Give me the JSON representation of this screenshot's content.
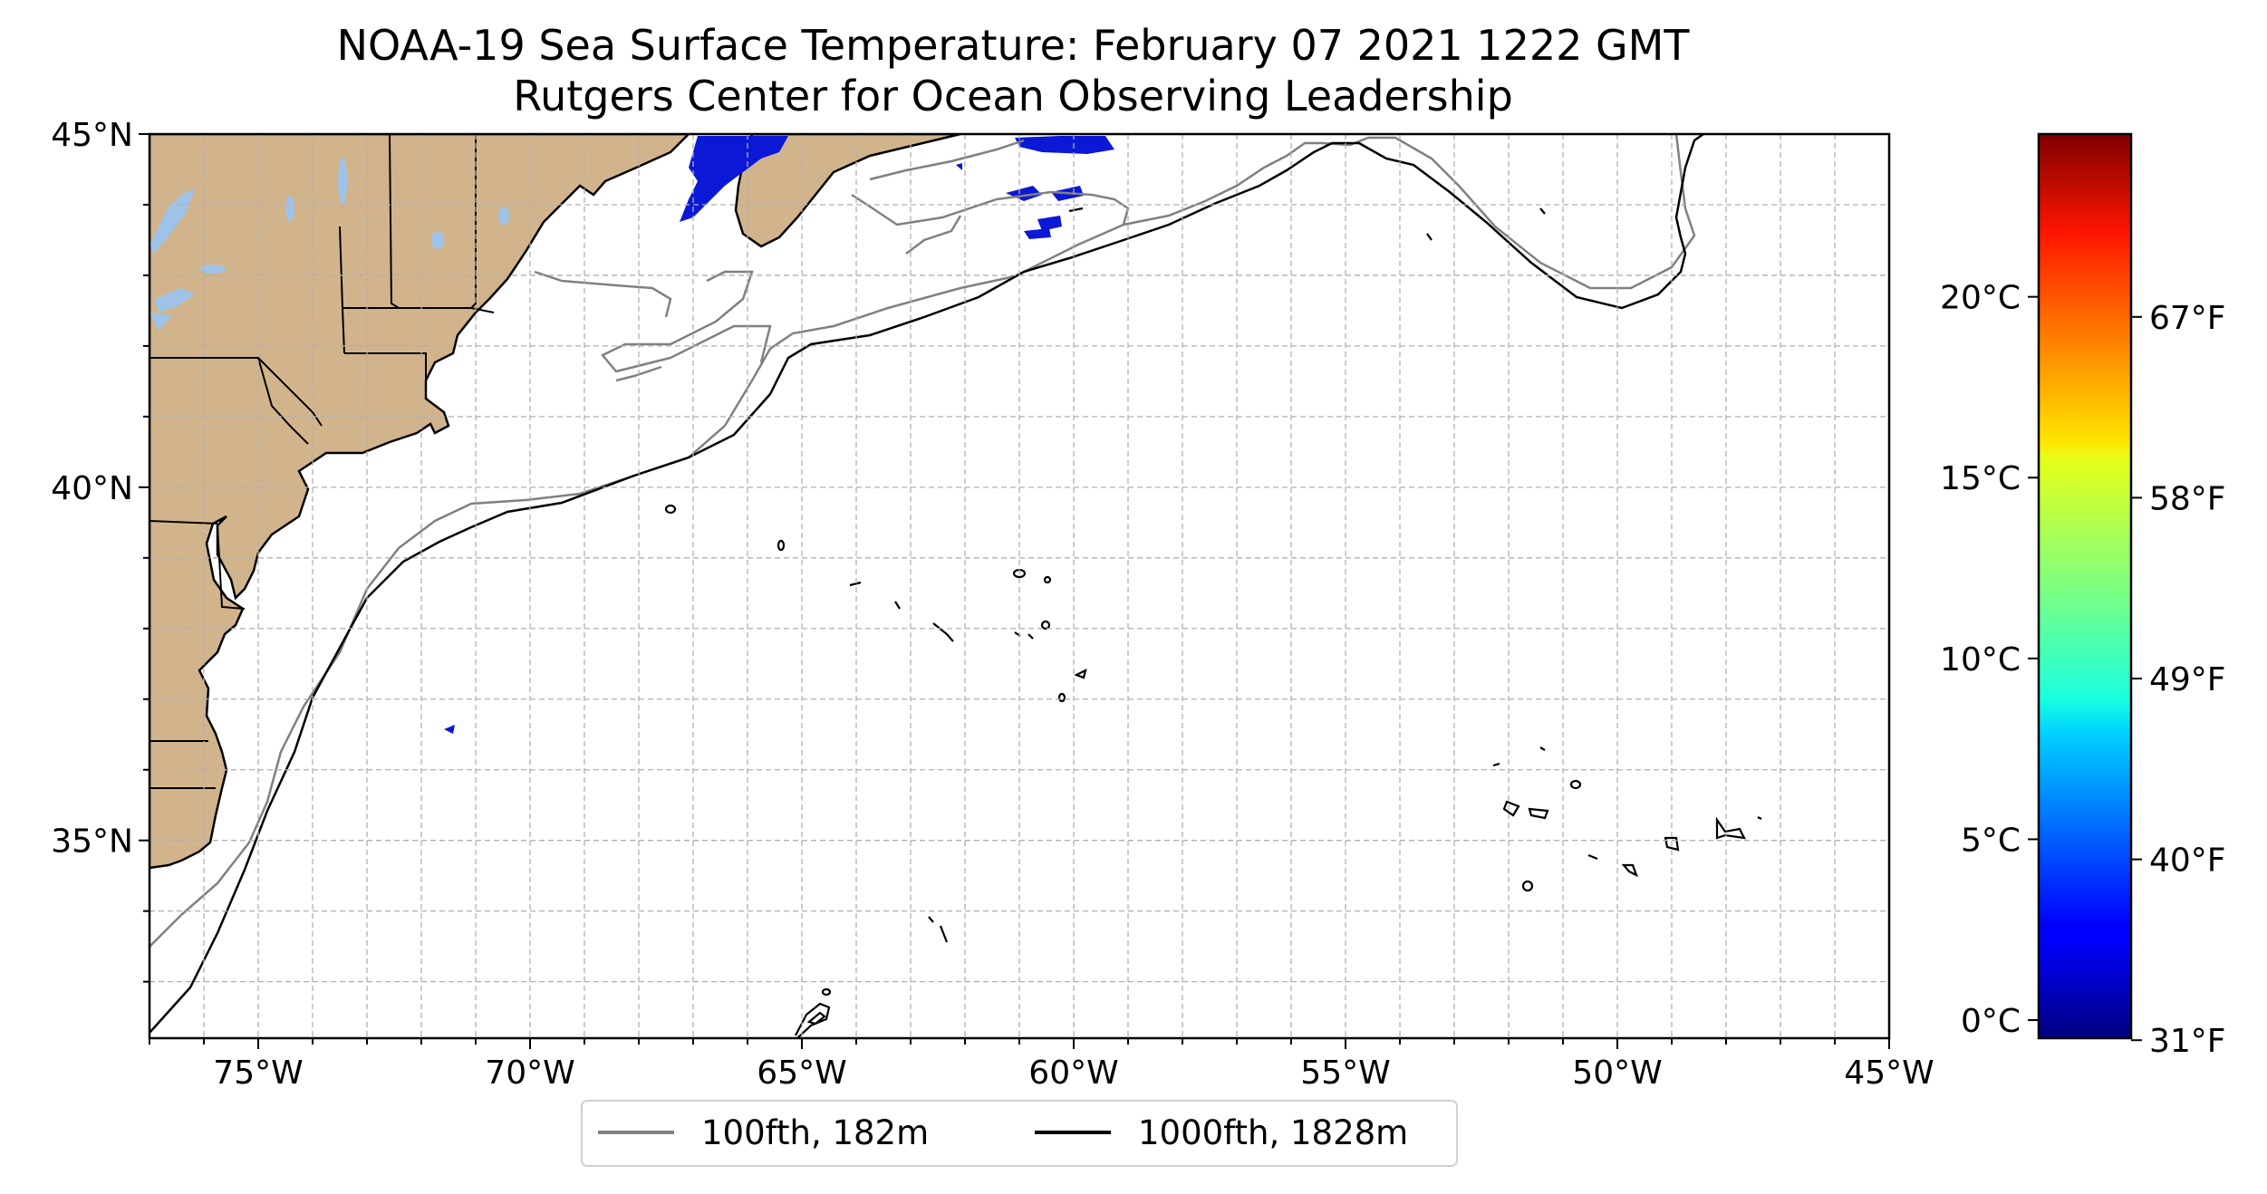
{
  "map": {
    "title": "NOAA-19 Sea Surface Temperature: February 07 2021 1222 GMT",
    "subtitle": "Rutgers Center for Ocean Observing Leadership",
    "lon_range": [
      -77,
      -45
    ],
    "lat_range": [
      32.2,
      45
    ],
    "lon_ticks": [
      {
        "value": -75,
        "label": "75°W"
      },
      {
        "value": -70,
        "label": "70°W"
      },
      {
        "value": -65,
        "label": "65°W"
      },
      {
        "value": -60,
        "label": "60°W"
      },
      {
        "value": -55,
        "label": "55°W"
      },
      {
        "value": -50,
        "label": "50°W"
      },
      {
        "value": -45,
        "label": "45°W"
      }
    ],
    "lat_ticks": [
      {
        "value": 45,
        "label": "45°N"
      },
      {
        "value": 40,
        "label": "40°N"
      },
      {
        "value": 35,
        "label": "35°N"
      }
    ],
    "gridlines": true,
    "land_color": "#d2b48c",
    "lake_color": "#9fc3e8",
    "legend": {
      "placement": "bottom-center",
      "items": [
        {
          "label": "100fth, 182m",
          "color": "#808080"
        },
        {
          "label": "1000fth, 1828m",
          "color": "#000000"
        }
      ]
    }
  },
  "colorbar": {
    "colormap": "jet",
    "range_c": [
      -0.5,
      24.5
    ],
    "celsius_ticks": [
      {
        "value": 0,
        "label": "0°C"
      },
      {
        "value": 5,
        "label": "5°C"
      },
      {
        "value": 10,
        "label": "10°C"
      },
      {
        "value": 15,
        "label": "15°C"
      },
      {
        "value": 20,
        "label": "20°C"
      }
    ],
    "fahrenheit_ticks": [
      {
        "value": 31,
        "label": "31°F"
      },
      {
        "value": 40,
        "label": "40°F"
      },
      {
        "value": 49,
        "label": "49°F"
      },
      {
        "value": 58,
        "label": "58°F"
      },
      {
        "value": 67,
        "label": "67°F"
      }
    ]
  }
}
